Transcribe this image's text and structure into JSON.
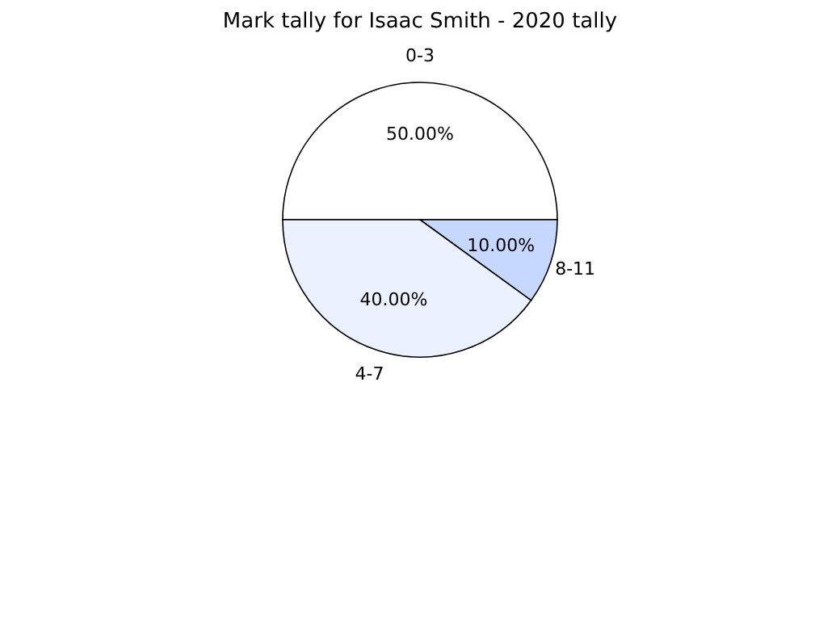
{
  "chart_data": {
    "type": "pie",
    "title": "Mark tally for Isaac Smith - 2020 tally",
    "categories": [
      "0-3",
      "8-11",
      "4-7"
    ],
    "values": [
      50,
      10,
      40
    ],
    "value_labels": [
      "50.00%",
      "10.00%",
      "40.00%"
    ],
    "colors": [
      "#ffffff",
      "#c6d8ff",
      "#ebf1fe"
    ],
    "legend": false
  }
}
